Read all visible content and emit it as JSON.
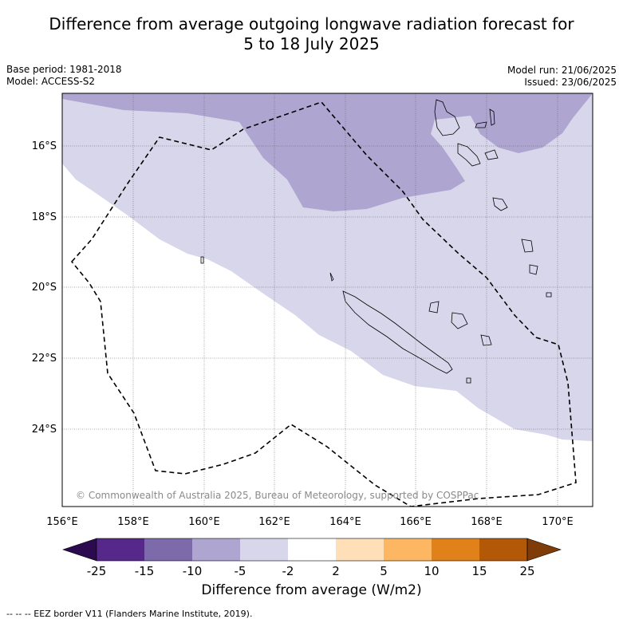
{
  "title": {
    "line1": "Difference from average outgoing longwave radiation forecast for",
    "line2": "5 to 18 July 2025"
  },
  "meta": {
    "base_period": "Base period: 1981-2018",
    "model": "Model: ACCESS-S2",
    "model_run": "Model run: 21/06/2025",
    "issued": "Issued: 23/06/2025"
  },
  "map": {
    "lon_labels": [
      "156°E",
      "158°E",
      "160°E",
      "162°E",
      "164°E",
      "166°E",
      "168°E",
      "170°E"
    ],
    "lat_labels": [
      "16°S",
      "18°S",
      "20°S",
      "22°S",
      "24°S"
    ],
    "copyright": "© Commonwealth of Australia 2025, Bureau of Meteorology, supported by COSPPac"
  },
  "colorbar": {
    "ticks": [
      "-25",
      "-15",
      "-10",
      "-5",
      "-2",
      "2",
      "5",
      "10",
      "15",
      "25"
    ],
    "colors": [
      "#2b0a4f",
      "#55288a",
      "#7c6aab",
      "#aea5d0",
      "#d7d6ea",
      "#ffffff",
      "#fedfb7",
      "#fdb762",
      "#e08219",
      "#b35806",
      "#7f3b08"
    ],
    "title": "Difference from average (W/m2)"
  },
  "footer": {
    "legend": "--  --  -- EEZ border V11 (Flanders Marine Institute, 2019)."
  }
}
